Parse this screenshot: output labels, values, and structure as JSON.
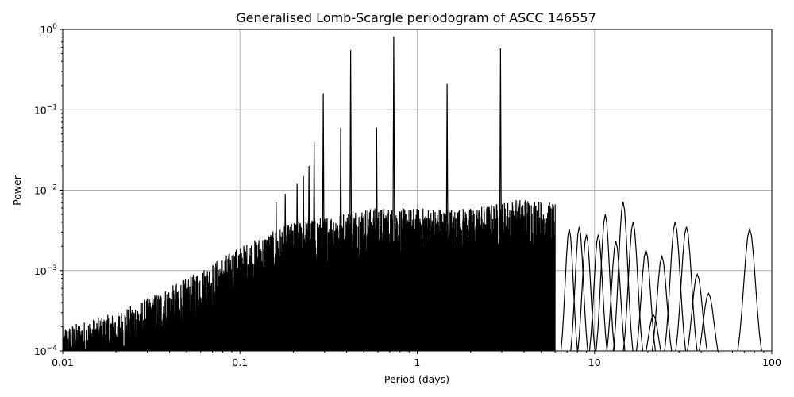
{
  "chart_data": {
    "type": "line",
    "title": "Generalised Lomb-Scargle periodogram of ASCC 146557",
    "xlabel": "Period (days)",
    "ylabel": "Power",
    "xscale": "log",
    "yscale": "log",
    "xlim": [
      0.01,
      100
    ],
    "ylim": [
      0.0001,
      1
    ],
    "grid": true,
    "x_ticks": [
      {
        "value": 0.01,
        "label": "0.01"
      },
      {
        "value": 0.1,
        "label": "0.1"
      },
      {
        "value": 1,
        "label": "1"
      },
      {
        "value": 10,
        "label": "10"
      },
      {
        "value": 100,
        "label": "100"
      }
    ],
    "y_ticks": [
      {
        "value": 0.0001,
        "base": "10",
        "exp": "−4"
      },
      {
        "value": 0.001,
        "base": "10",
        "exp": "−3"
      },
      {
        "value": 0.01,
        "base": "10",
        "exp": "−2"
      },
      {
        "value": 0.1,
        "base": "10",
        "exp": "−1"
      },
      {
        "value": 1,
        "base": "10",
        "exp": "0"
      }
    ],
    "series": [
      {
        "color": "#000000",
        "peaks": [
          {
            "period": 0.295,
            "power": 0.16
          },
          {
            "period": 0.421,
            "power": 0.55
          },
          {
            "period": 0.737,
            "power": 0.82
          },
          {
            "period": 1.474,
            "power": 0.21
          },
          {
            "period": 2.95,
            "power": 0.58
          },
          {
            "period": 0.37,
            "power": 0.06
          },
          {
            "period": 0.59,
            "power": 0.06
          },
          {
            "period": 0.262,
            "power": 0.04
          },
          {
            "period": 0.245,
            "power": 0.02
          },
          {
            "period": 0.228,
            "power": 0.015
          },
          {
            "period": 0.21,
            "power": 0.012
          },
          {
            "period": 0.18,
            "power": 0.009
          },
          {
            "period": 0.16,
            "power": 0.007
          }
        ],
        "envelope": [
          {
            "period": 0.01,
            "power": 0.0002
          },
          {
            "period": 0.02,
            "power": 0.0003
          },
          {
            "period": 0.05,
            "power": 0.0008
          },
          {
            "period": 0.1,
            "power": 0.002
          },
          {
            "period": 0.2,
            "power": 0.004
          },
          {
            "period": 0.5,
            "power": 0.006
          },
          {
            "period": 1,
            "power": 0.006
          },
          {
            "period": 2,
            "power": 0.006
          },
          {
            "period": 4,
            "power": 0.008
          },
          {
            "period": 6,
            "power": 0.007
          }
        ],
        "long_period_bumps": [
          {
            "period": 7.2,
            "power": 0.0033
          },
          {
            "period": 8.2,
            "power": 0.0035
          },
          {
            "period": 9.0,
            "power": 0.0028
          },
          {
            "period": 10.5,
            "power": 0.0028
          },
          {
            "period": 11.5,
            "power": 0.005
          },
          {
            "period": 13.2,
            "power": 0.0023
          },
          {
            "period": 14.5,
            "power": 0.0072
          },
          {
            "period": 16.5,
            "power": 0.004
          },
          {
            "period": 19.5,
            "power": 0.0018
          },
          {
            "period": 21.5,
            "power": 0.00028
          },
          {
            "period": 24.0,
            "power": 0.0015
          },
          {
            "period": 28.5,
            "power": 0.004
          },
          {
            "period": 33.0,
            "power": 0.0035
          },
          {
            "period": 38.0,
            "power": 0.0009
          },
          {
            "period": 44.0,
            "power": 0.00052
          },
          {
            "period": 75.0,
            "power": 0.0033
          }
        ]
      }
    ]
  }
}
